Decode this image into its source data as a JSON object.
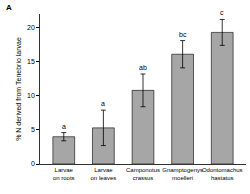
{
  "chart_data": {
    "type": "bar",
    "panel_label": "A",
    "y_label": "% N derived from Tenebrio larvae",
    "categories": [
      "Larvae on roots",
      "Larvae on leaves",
      "Camponotus crassus",
      "Gnamptogenys moelleri",
      "Odontomachus hastatus"
    ],
    "values": [
      4.0,
      5.3,
      10.8,
      16.1,
      19.3
    ],
    "errors": [
      0.6,
      2.6,
      2.4,
      2.0,
      1.9
    ],
    "significance_letters": [
      "a",
      "a",
      "ab",
      "bc",
      "c"
    ],
    "color": "#a6a6a6",
    "ylim": [
      0,
      22
    ],
    "yticks": [
      0,
      5,
      10,
      15,
      20
    ],
    "grid": false
  }
}
